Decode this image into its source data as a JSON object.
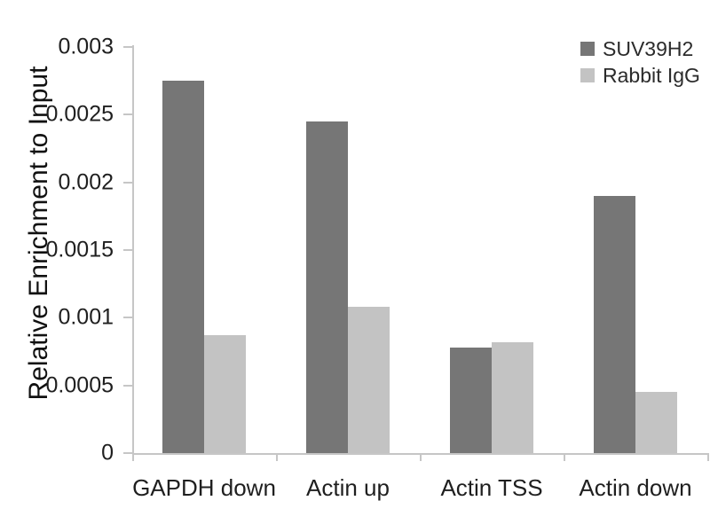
{
  "chart_data": {
    "type": "bar",
    "title": "",
    "xlabel": "",
    "ylabel": "Relative Enrichment to Input",
    "ylim": [
      0,
      0.003
    ],
    "yticks": [
      0,
      0.0005,
      0.001,
      0.0015,
      0.002,
      0.0025,
      0.003
    ],
    "ytick_labels": [
      "0",
      "0.0005",
      "0.001",
      "0.0015",
      "0.002",
      "0.0025",
      "0.003"
    ],
    "categories": [
      "GAPDH down",
      "Actin up",
      "Actin TSS",
      "Actin down"
    ],
    "series": [
      {
        "name": "SUV39H2",
        "color": "#767676",
        "values": [
          0.00275,
          0.00245,
          0.00078,
          0.0019
        ]
      },
      {
        "name": "Rabbit IgG",
        "color": "#c3c3c3",
        "values": [
          0.00087,
          0.00108,
          0.00082,
          0.00045
        ]
      }
    ],
    "legend_position": "top-right",
    "grid": false,
    "background_color": "#ffffff",
    "axis_color": "#c6c6c6",
    "text_color": "#1f1f1f"
  }
}
